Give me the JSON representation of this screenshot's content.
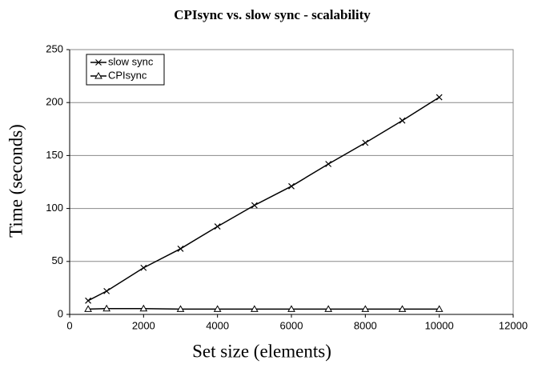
{
  "chart_data": {
    "type": "line",
    "title": "CPIsync vs. slow sync - scalability",
    "xlabel": "Set size (elements)",
    "ylabel": "Time  (seconds)",
    "x": [
      500,
      1000,
      2000,
      3000,
      4000,
      5000,
      6000,
      7000,
      8000,
      9000,
      10000
    ],
    "series": [
      {
        "name": "slow sync",
        "color": "#000000",
        "marker": "x",
        "values": [
          13,
          22,
          44,
          62,
          83,
          103,
          121,
          142,
          162,
          183,
          205
        ]
      },
      {
        "name": "CPIsync",
        "color": "#000000",
        "marker": "triangle",
        "values": [
          5,
          5.5,
          5.5,
          5,
          5,
          5,
          5,
          5,
          5,
          5,
          5
        ]
      }
    ],
    "xlim": [
      0,
      12000
    ],
    "xticks": [
      0,
      2000,
      4000,
      6000,
      8000,
      10000,
      12000
    ],
    "ylim": [
      0,
      250
    ],
    "yticks": [
      0,
      50,
      100,
      150,
      200,
      250
    ],
    "grid": true,
    "legend": "upper left"
  }
}
